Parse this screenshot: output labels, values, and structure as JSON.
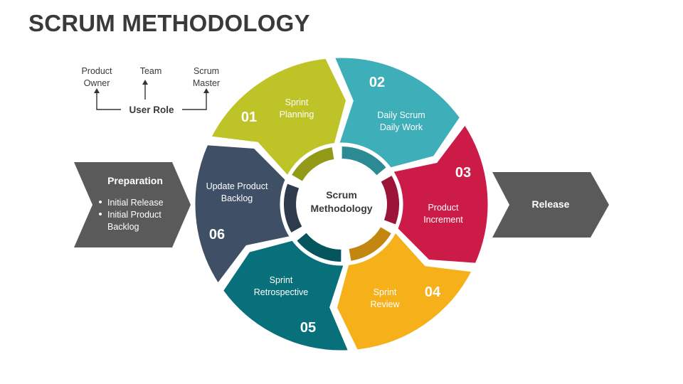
{
  "title": "SCRUM METHODOLOGY",
  "user_role": {
    "label": "User Role",
    "roles": [
      {
        "line1": "Product",
        "line2": "Owner"
      },
      {
        "line1": "Team",
        "line2": ""
      },
      {
        "line1": "Scrum",
        "line2": "Master"
      }
    ]
  },
  "preparation": {
    "heading": "Preparation",
    "bullets": [
      {
        "line1": "Initial Release",
        "line2": ""
      },
      {
        "line1": "Initial Product",
        "line2": "Backlog"
      }
    ]
  },
  "release": {
    "label": "Release"
  },
  "center": {
    "line1": "Scrum",
    "line2": "Methodology"
  },
  "steps": [
    {
      "number": "01",
      "line1": "Sprint",
      "line2": "Planning",
      "color": "#bec428",
      "ring_color": "#939a18"
    },
    {
      "number": "02",
      "line1": "Daily Scrum",
      "line2": "Daily Work",
      "color": "#3eaeb8",
      "ring_color": "#2b8a93"
    },
    {
      "number": "03",
      "line1": "Product",
      "line2": "Increment",
      "color": "#cd1b48",
      "ring_color": "#9c1437"
    },
    {
      "number": "04",
      "line1": "Sprint",
      "line2": "Review",
      "color": "#f5b01a",
      "ring_color": "#c28611"
    },
    {
      "number": "05",
      "line1": "Sprint",
      "line2": "Retrospective",
      "color": "#08707a",
      "ring_color": "#05555d"
    },
    {
      "number": "06",
      "line1": "Update Product",
      "line2": "Backlog",
      "color": "#3f5066",
      "ring_color": "#2d3b4d"
    }
  ],
  "colors": {
    "title": "#3a3a3a",
    "arrow": "#5a5a5a",
    "text_dark": "#3a3a3a"
  }
}
